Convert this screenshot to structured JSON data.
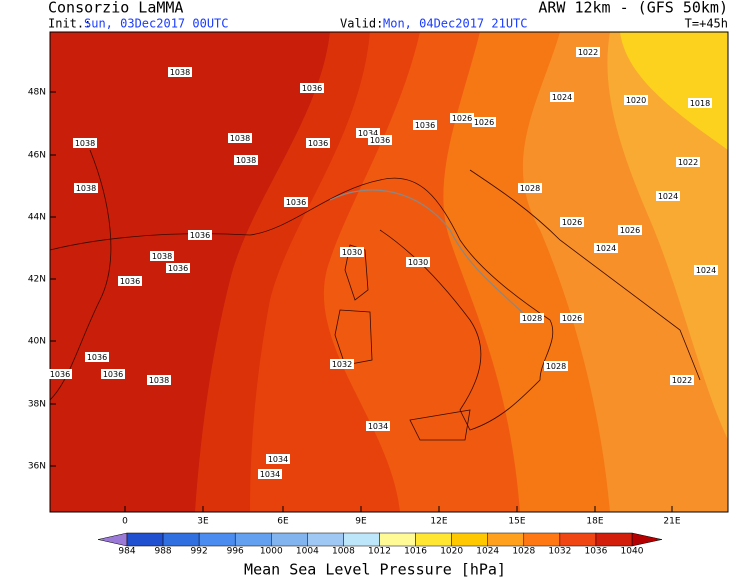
{
  "header": {
    "title": "Consorzio LaMMA",
    "model": "ARW 12km - (GFS 50km)",
    "init_label": "Init.:",
    "init": "Sun, 03Dec2017 00UTC",
    "valid_label": "Valid:",
    "valid": "Mon, 04Dec2017 21UTC",
    "lead": "T=+45h"
  },
  "lat_labels": [
    "48N",
    "46N",
    "44N",
    "42N",
    "40N",
    "38N",
    "36N"
  ],
  "lon_labels": [
    "0",
    "3E",
    "6E",
    "9E",
    "12E",
    "15E",
    "18E",
    "21E"
  ],
  "isobar_labels": [
    "1038",
    "1036",
    "1038",
    "1038",
    "1036",
    "1038",
    "1034",
    "1036",
    "1036",
    "1026",
    "1026",
    "1022",
    "1024",
    "1020",
    "1018",
    "1022",
    "1024",
    "1028",
    "1026",
    "1026",
    "1024",
    "1024",
    "1038",
    "1036",
    "1036",
    "1038",
    "1036",
    "1036",
    "1030",
    "1030",
    "1028",
    "1026",
    "1028",
    "1032",
    "1036",
    "1036",
    "1036",
    "1038",
    "1022",
    "1034",
    "1034",
    "1034"
  ],
  "legend": {
    "title": "Mean Sea Level Pressure [hPa]",
    "levels": [
      984,
      988,
      992,
      996,
      1000,
      1004,
      1008,
      1012,
      1016,
      1020,
      1024,
      1028,
      1032,
      1036,
      1040
    ],
    "under_color": "#9b7ad7",
    "over_color": "#b40000",
    "colors": [
      "#2050d0",
      "#2f6fe0",
      "#4a8cf0",
      "#64a0f0",
      "#82b4f0",
      "#a0c8f5",
      "#bee6fa",
      "#fffa96",
      "#ffe632",
      "#ffc800",
      "#ffa01e",
      "#ff7814",
      "#f04614",
      "#d21e0a"
    ]
  }
}
